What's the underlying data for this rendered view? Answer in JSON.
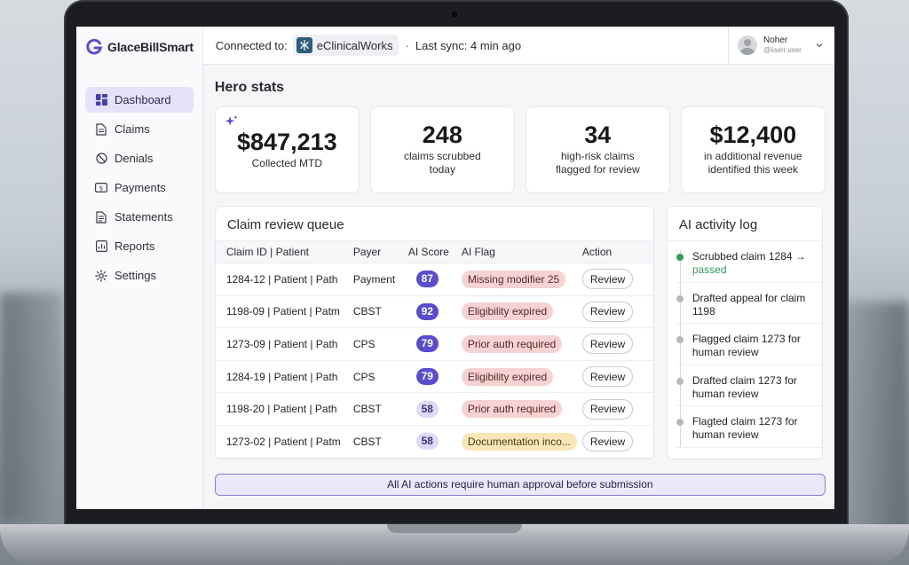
{
  "brand": {
    "name": "GlaceBillSmart",
    "accent": "#5b4bd0"
  },
  "sidebar": {
    "items": [
      {
        "label": "Dashboard",
        "icon": "dashboard-icon",
        "active": true
      },
      {
        "label": "Claims",
        "icon": "document-icon"
      },
      {
        "label": "Denials",
        "icon": "block-icon"
      },
      {
        "label": "Payments",
        "icon": "dollar-icon"
      },
      {
        "label": "Statements",
        "icon": "statement-icon"
      },
      {
        "label": "Reports",
        "icon": "chart-icon"
      },
      {
        "label": "Settings",
        "icon": "gear-icon"
      }
    ]
  },
  "topbar": {
    "connected_label": "Connected to:",
    "ehr_name": "eClinicalWorks",
    "separator": "·",
    "sync_text": "Last sync: 4 min ago",
    "user_name": "Noher",
    "user_handle": "@iiserr.user"
  },
  "hero": {
    "title": "Hero stats",
    "stats": [
      {
        "value": "$847,213",
        "label": "Collected MTD"
      },
      {
        "value": "248",
        "label": "claims scrubbed today"
      },
      {
        "value": "34",
        "label": "high-risk claims flagged for review"
      },
      {
        "value": "$12,400",
        "label": "in additional revenue identified this week"
      }
    ]
  },
  "queue": {
    "title": "Claim review queue",
    "headers": [
      "Claim ID | Patient",
      "Payer",
      "AI Score",
      "AI Flag",
      "Action"
    ],
    "rows": [
      {
        "id": "1284-12 | Patient | Path",
        "payer": "Payment",
        "score": "87",
        "flag": "Missing modifier 25",
        "tone": "red",
        "action": "Review"
      },
      {
        "id": "1198-09 | Patient | Patm",
        "payer": "CBST",
        "score": "92",
        "flag": "Eligibility expired",
        "tone": "red",
        "action": "Review"
      },
      {
        "id": "1273-09 | Patient | Path",
        "payer": "CPS",
        "score": "79",
        "flag": "Prior auth required",
        "tone": "red",
        "action": "Review"
      },
      {
        "id": "1284-19 | Patient | Path",
        "payer": "CPS",
        "score": "79",
        "flag": "Eligibility expired",
        "tone": "red",
        "action": "Review"
      },
      {
        "id": "1198-20 | Patient | Path",
        "payer": "CBST",
        "score": "58",
        "flag": "Prior auth required",
        "tone": "red",
        "action": "Review"
      },
      {
        "id": "1273-02 | Patient | Patm",
        "payer": "CBST",
        "score": "58",
        "flag": "Documentation inco...",
        "tone": "amber",
        "action": "Review"
      }
    ]
  },
  "activity": {
    "title": "AI activity log",
    "items": [
      {
        "text": "Scrubbed claim 1284 →",
        "status": "passed",
        "dot": "green"
      },
      {
        "text": "Drafted appeal for claim 1198"
      },
      {
        "text": "Flagged claim 1273 for human review"
      },
      {
        "text": "Drafted claim 1273 for human review"
      },
      {
        "text": "Flagted claim 1273 for human review"
      }
    ]
  },
  "footer": {
    "approval_text": "All AI actions require human approval before submission"
  }
}
